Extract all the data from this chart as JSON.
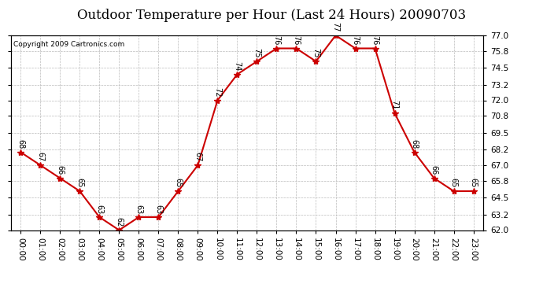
{
  "title": "Outdoor Temperature per Hour (Last 24 Hours) 20090703",
  "copyright_text": "Copyright 2009 Cartronics.com",
  "hours": [
    "00:00",
    "01:00",
    "02:00",
    "03:00",
    "04:00",
    "05:00",
    "06:00",
    "07:00",
    "08:00",
    "09:00",
    "10:00",
    "11:00",
    "12:00",
    "13:00",
    "14:00",
    "15:00",
    "16:00",
    "17:00",
    "18:00",
    "19:00",
    "20:00",
    "21:00",
    "22:00",
    "23:00"
  ],
  "temps": [
    68,
    67,
    66,
    65,
    63,
    62,
    63,
    63,
    65,
    67,
    72,
    74,
    75,
    76,
    76,
    75,
    77,
    76,
    76,
    71,
    68,
    66,
    65,
    65
  ],
  "y_min": 62.0,
  "y_max": 77.0,
  "y_ticks": [
    62.0,
    63.2,
    64.5,
    65.8,
    67.0,
    68.2,
    69.5,
    70.8,
    72.0,
    73.2,
    74.5,
    75.8,
    77.0
  ],
  "line_color": "#cc0000",
  "marker_color": "#cc0000",
  "bg_color": "#ffffff",
  "grid_color": "#bbbbbb",
  "title_fontsize": 12,
  "tick_fontsize": 7.5,
  "label_fontsize": 7,
  "copyright_fontsize": 6.5
}
